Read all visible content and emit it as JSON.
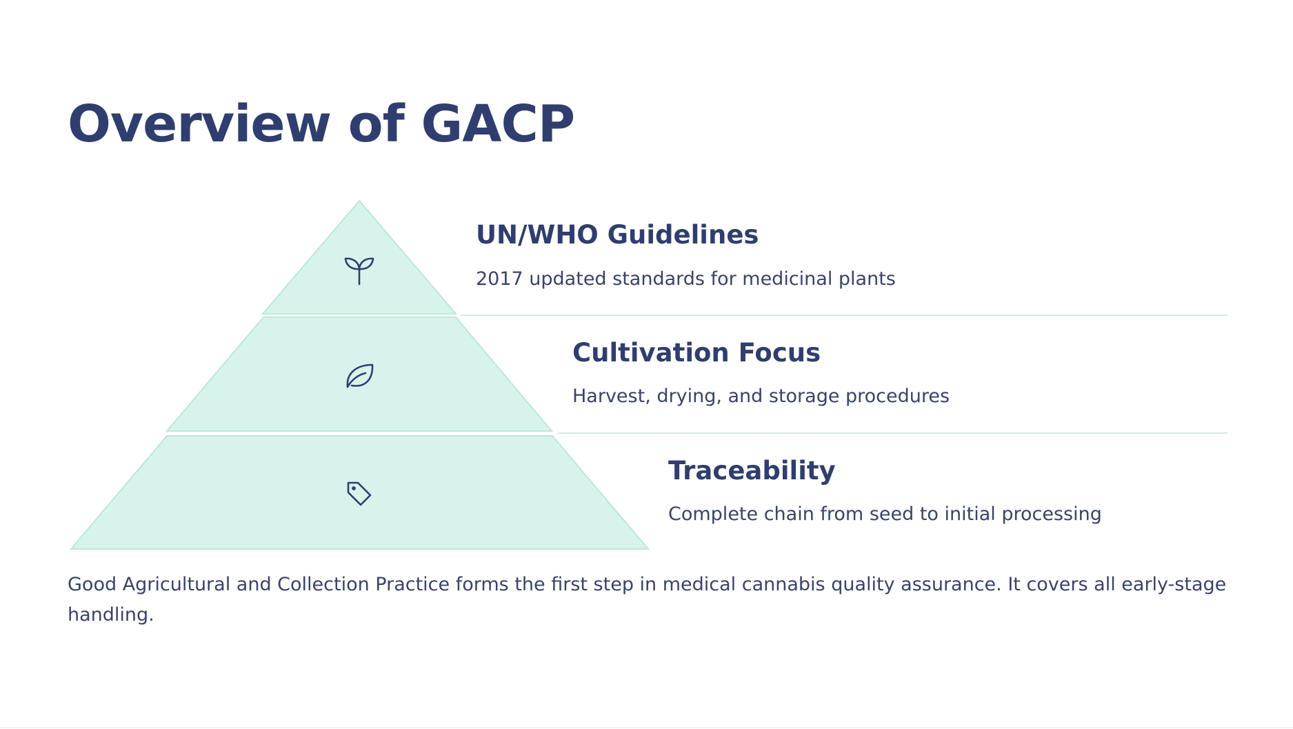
{
  "slide": {
    "title": "Overview of GACP",
    "caption": "Good Agricultural and Collection Practice forms the first step in medical cannabis quality assurance. It covers all early-stage handling."
  },
  "pyramid": {
    "fill_color": "#d6f4ec",
    "stroke_color": "#bfe6da",
    "divider_color": "#d3ebe4",
    "icon_color": "#2f3e6e",
    "tiers": [
      {
        "title": "UN/WHO Guidelines",
        "description": "2017 updated standards for medicinal plants",
        "icon": "sprout-icon"
      },
      {
        "title": "Cultivation Focus",
        "description": "Harvest, drying, and storage procedures",
        "icon": "leaf-icon"
      },
      {
        "title": "Traceability",
        "description": "Complete chain from seed to initial processing",
        "icon": "tag-icon"
      }
    ]
  }
}
